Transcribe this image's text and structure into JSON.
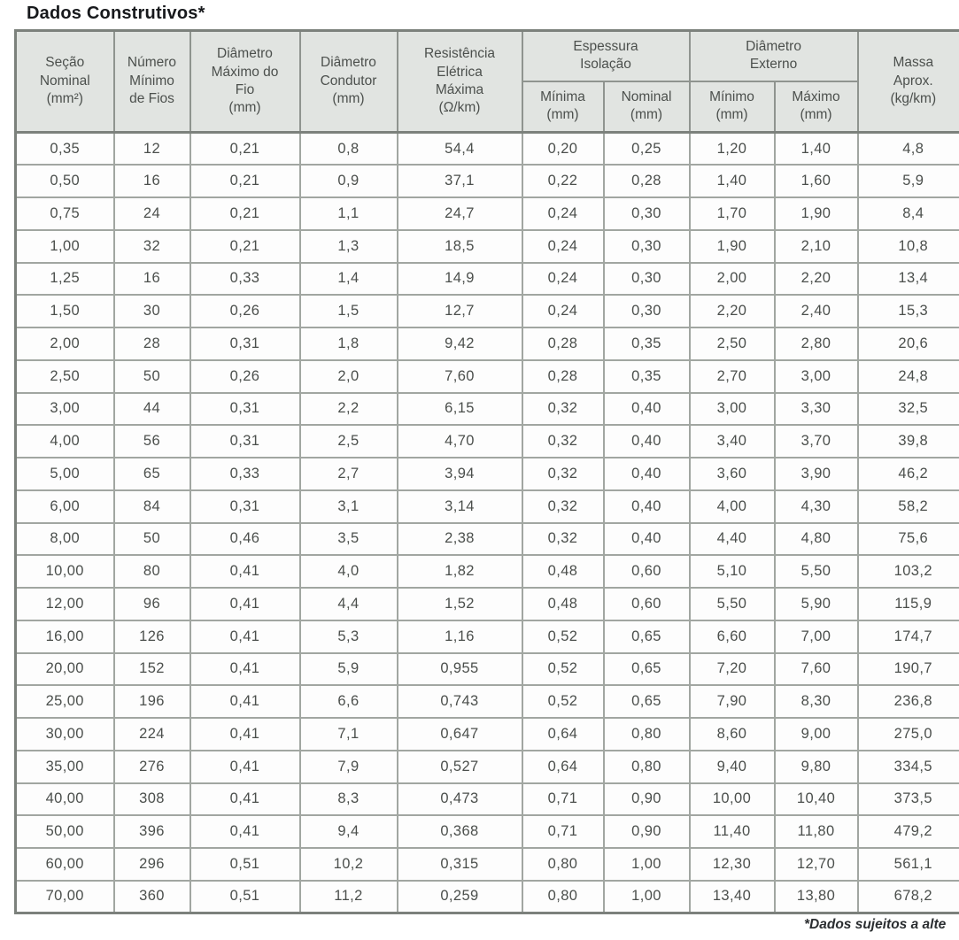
{
  "title": "Dados Construtivos*",
  "footnote": "*Dados sujeitos a alte",
  "colors": {
    "header_bg": "#e1e4e1",
    "inner_border": "#a1a6a1",
    "outer_border": "#7c817c",
    "header_text": "#4c504d",
    "cell_text": "#4b4f4c",
    "title_text": "#17191c"
  },
  "table": {
    "header": {
      "secao": "Seção\nNominal\n(mm²)",
      "numero": "Número\nMínimo\nde Fios",
      "diam_max_fio": "Diâmetro\nMáximo do\nFio\n(mm)",
      "diam_condutor": "Diâmetro\nCondutor\n(mm)",
      "resistencia": "Resistência\nElétrica\nMáxima\n(Ω/km)",
      "espessura_group": "Espessura\nIsolação",
      "espessura_minima": "Mínima\n(mm)",
      "espessura_nominal": "Nominal\n(mm)",
      "diam_externo_group": "Diâmetro\nExterno",
      "diam_externo_minimo": "Mínimo\n(mm)",
      "diam_externo_maximo": "Máximo\n(mm)",
      "massa": "Massa\nAprox.\n(kg/km)"
    },
    "rows": [
      [
        "0,35",
        "12",
        "0,21",
        "0,8",
        "54,4",
        "0,20",
        "0,25",
        "1,20",
        "1,40",
        "4,8"
      ],
      [
        "0,50",
        "16",
        "0,21",
        "0,9",
        "37,1",
        "0,22",
        "0,28",
        "1,40",
        "1,60",
        "5,9"
      ],
      [
        "0,75",
        "24",
        "0,21",
        "1,1",
        "24,7",
        "0,24",
        "0,30",
        "1,70",
        "1,90",
        "8,4"
      ],
      [
        "1,00",
        "32",
        "0,21",
        "1,3",
        "18,5",
        "0,24",
        "0,30",
        "1,90",
        "2,10",
        "10,8"
      ],
      [
        "1,25",
        "16",
        "0,33",
        "1,4",
        "14,9",
        "0,24",
        "0,30",
        "2,00",
        "2,20",
        "13,4"
      ],
      [
        "1,50",
        "30",
        "0,26",
        "1,5",
        "12,7",
        "0,24",
        "0,30",
        "2,20",
        "2,40",
        "15,3"
      ],
      [
        "2,00",
        "28",
        "0,31",
        "1,8",
        "9,42",
        "0,28",
        "0,35",
        "2,50",
        "2,80",
        "20,6"
      ],
      [
        "2,50",
        "50",
        "0,26",
        "2,0",
        "7,60",
        "0,28",
        "0,35",
        "2,70",
        "3,00",
        "24,8"
      ],
      [
        "3,00",
        "44",
        "0,31",
        "2,2",
        "6,15",
        "0,32",
        "0,40",
        "3,00",
        "3,30",
        "32,5"
      ],
      [
        "4,00",
        "56",
        "0,31",
        "2,5",
        "4,70",
        "0,32",
        "0,40",
        "3,40",
        "3,70",
        "39,8"
      ],
      [
        "5,00",
        "65",
        "0,33",
        "2,7",
        "3,94",
        "0,32",
        "0,40",
        "3,60",
        "3,90",
        "46,2"
      ],
      [
        "6,00",
        "84",
        "0,31",
        "3,1",
        "3,14",
        "0,32",
        "0,40",
        "4,00",
        "4,30",
        "58,2"
      ],
      [
        "8,00",
        "50",
        "0,46",
        "3,5",
        "2,38",
        "0,32",
        "0,40",
        "4,40",
        "4,80",
        "75,6"
      ],
      [
        "10,00",
        "80",
        "0,41",
        "4,0",
        "1,82",
        "0,48",
        "0,60",
        "5,10",
        "5,50",
        "103,2"
      ],
      [
        "12,00",
        "96",
        "0,41",
        "4,4",
        "1,52",
        "0,48",
        "0,60",
        "5,50",
        "5,90",
        "115,9"
      ],
      [
        "16,00",
        "126",
        "0,41",
        "5,3",
        "1,16",
        "0,52",
        "0,65",
        "6,60",
        "7,00",
        "174,7"
      ],
      [
        "20,00",
        "152",
        "0,41",
        "5,9",
        "0,955",
        "0,52",
        "0,65",
        "7,20",
        "7,60",
        "190,7"
      ],
      [
        "25,00",
        "196",
        "0,41",
        "6,6",
        "0,743",
        "0,52",
        "0,65",
        "7,90",
        "8,30",
        "236,8"
      ],
      [
        "30,00",
        "224",
        "0,41",
        "7,1",
        "0,647",
        "0,64",
        "0,80",
        "8,60",
        "9,00",
        "275,0"
      ],
      [
        "35,00",
        "276",
        "0,41",
        "7,9",
        "0,527",
        "0,64",
        "0,80",
        "9,40",
        "9,80",
        "334,5"
      ],
      [
        "40,00",
        "308",
        "0,41",
        "8,3",
        "0,473",
        "0,71",
        "0,90",
        "10,00",
        "10,40",
        "373,5"
      ],
      [
        "50,00",
        "396",
        "0,41",
        "9,4",
        "0,368",
        "0,71",
        "0,90",
        "11,40",
        "11,80",
        "479,2"
      ],
      [
        "60,00",
        "296",
        "0,51",
        "10,2",
        "0,315",
        "0,80",
        "1,00",
        "12,30",
        "12,70",
        "561,1"
      ],
      [
        "70,00",
        "360",
        "0,51",
        "11,2",
        "0,259",
        "0,80",
        "1,00",
        "13,40",
        "13,80",
        "678,2"
      ]
    ]
  }
}
